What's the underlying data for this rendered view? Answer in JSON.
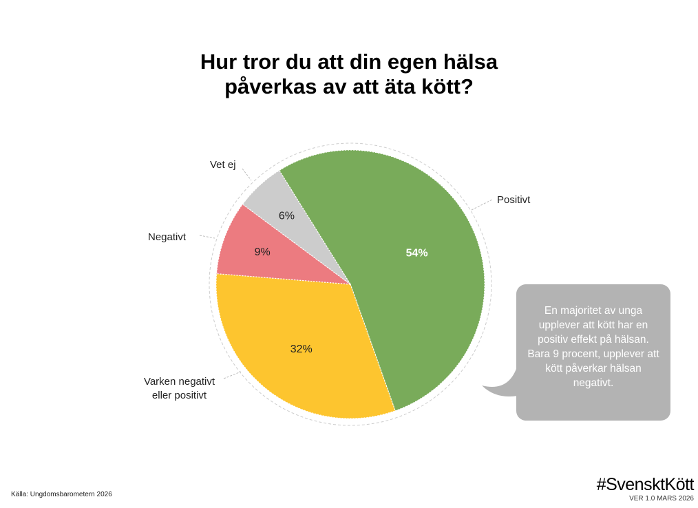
{
  "chart_data": {
    "type": "pie",
    "title": "Hur tror du att din egen hälsa påverkas av att äta kött?",
    "slices": [
      {
        "label": "Positivt",
        "value": 54,
        "value_label": "54%",
        "color": "#79ab5a"
      },
      {
        "label": "Varken negativt eller positivt",
        "value": 32,
        "value_label": "32%",
        "color": "#fdc52f"
      },
      {
        "label": "Negativt",
        "value": 9,
        "value_label": "9%",
        "color": "#ec7b80"
      },
      {
        "label": "Vet ej",
        "value": 6,
        "value_label": "6%",
        "color": "#cccccc"
      }
    ]
  },
  "title_line1": "Hur tror du att din egen hälsa",
  "title_line2": "påverkas av att äta kött?",
  "callout": "En majoritet av unga upplever att kött har en positiv effekt på hälsan. Bara 9 procent, upplever att kött påverkar hälsan negativt.",
  "source": "Källa: Ungdomsbarometern 2026",
  "brand": "#SvensktKött",
  "version": "VER 1.0 MARS 2026"
}
